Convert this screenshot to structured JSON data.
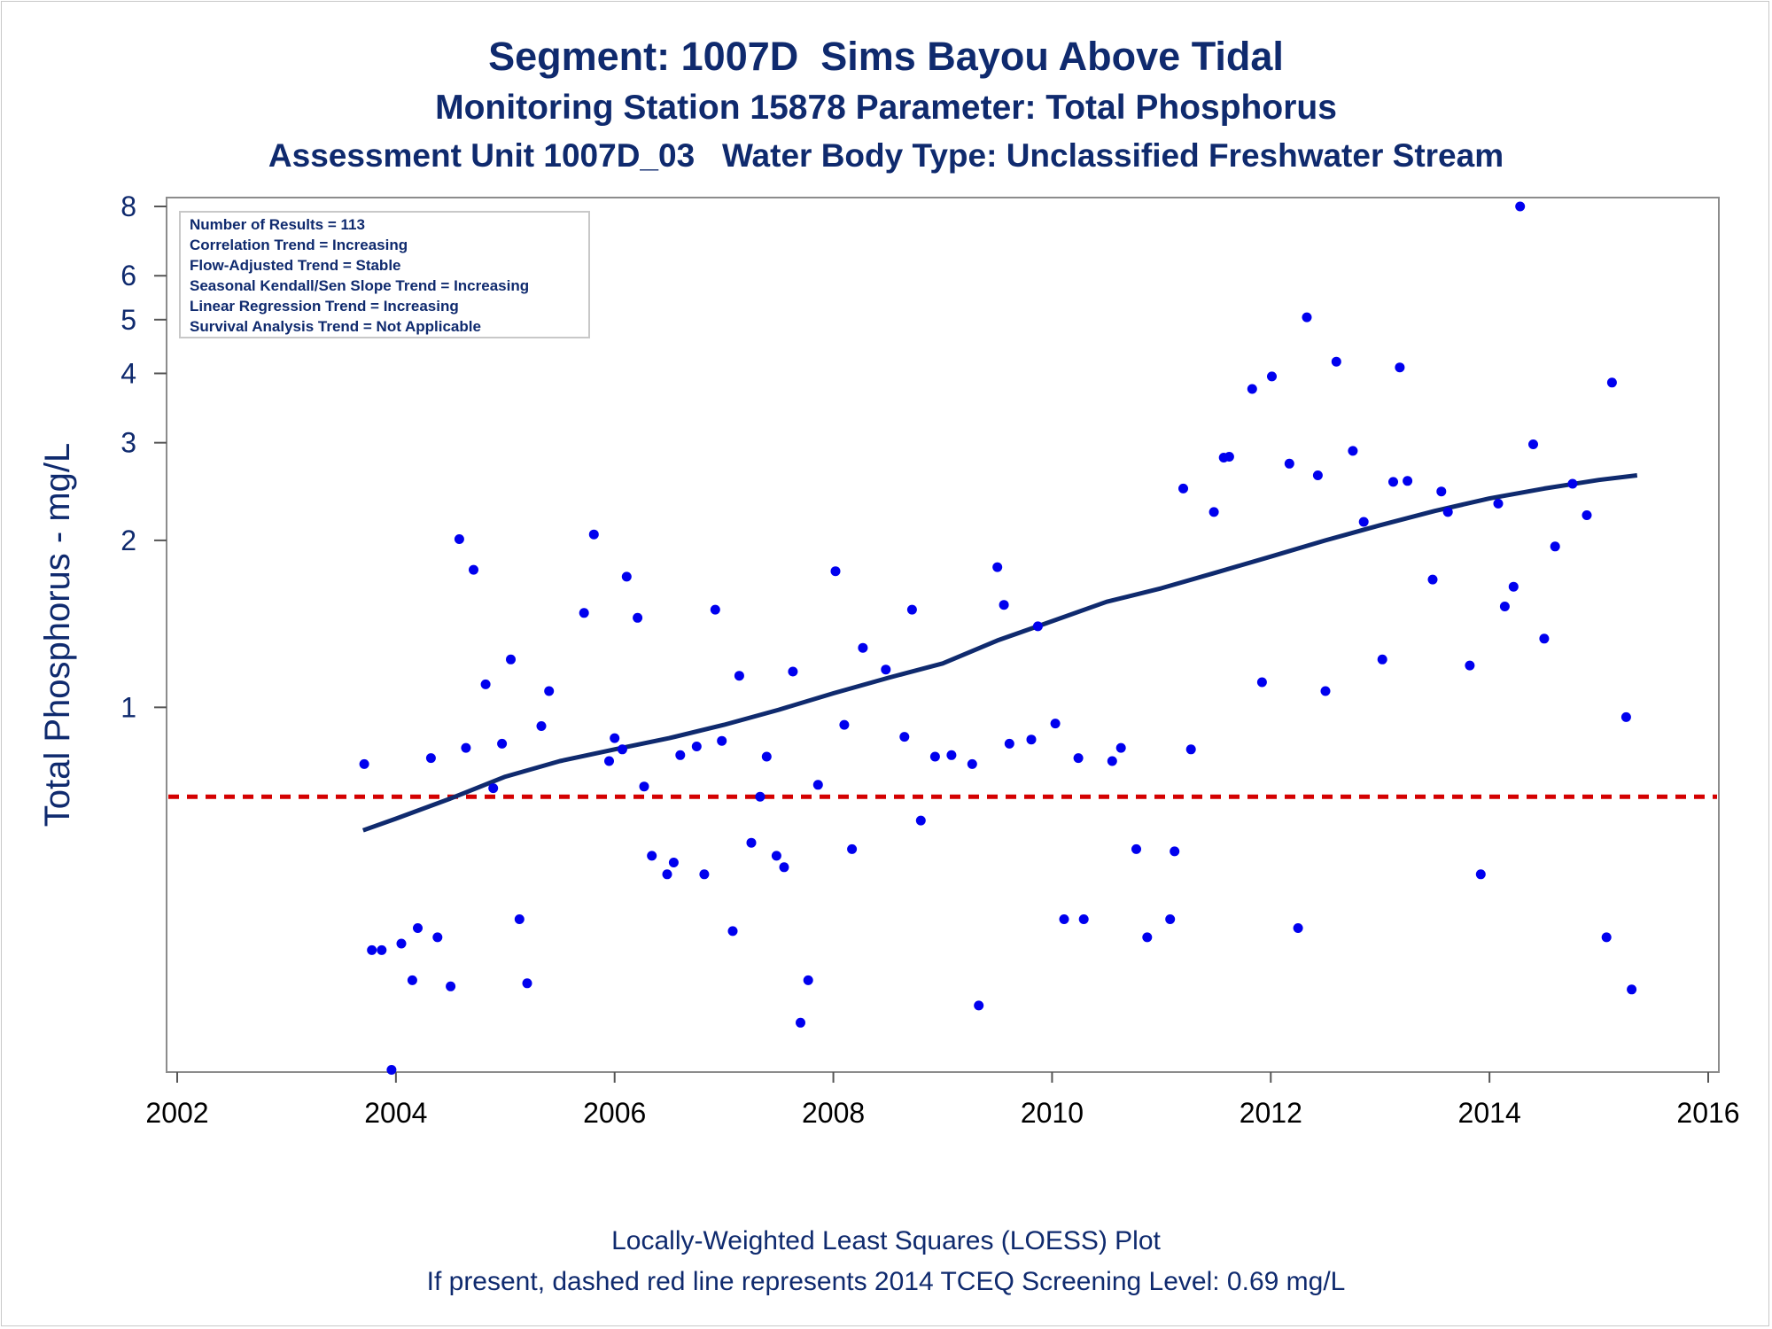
{
  "titles": {
    "line1": "Segment: 1007D  Sims Bayou Above Tidal",
    "line2": "Monitoring Station 15878 Parameter: Total Phosphorus",
    "line3": "Assessment Unit 1007D_03   Water Body Type: Unclassified Freshwater Stream"
  },
  "footnotes": {
    "line1": "Locally-Weighted Least Squares (LOESS) Plot",
    "line2": "If present, dashed red line represents 2014 TCEQ Screening Level: 0.69 mg/L"
  },
  "stats_box": [
    "Number of Results = 113",
    "Correlation Trend = Increasing",
    "Flow-Adjusted Trend = Stable",
    "Seasonal Kendall/Sen Slope Trend = Increasing",
    "Linear Regression Trend = Increasing",
    "Survival Analysis Trend = Not Applicable"
  ],
  "colors": {
    "title": "#0f2a6e",
    "points": "#0000ee",
    "loess": "#0f2a6e",
    "screening": "#d40000",
    "frame": "#8c8c8c"
  },
  "chart_data": {
    "type": "scatter",
    "title": "Segment: 1007D  Sims Bayou Above Tidal",
    "xlabel": "",
    "ylabel": "Total Phosphorus - mg/L",
    "y_scale": "log",
    "xlim": [
      2002,
      2016
    ],
    "ylim": [
      0.22,
      8.3
    ],
    "x_ticks": [
      2002,
      2004,
      2006,
      2008,
      2010,
      2012,
      2014,
      2016
    ],
    "y_ticks": [
      1,
      2,
      3,
      4,
      5,
      6,
      8
    ],
    "grid": false,
    "legend": "top-left stats box",
    "screening_level": 0.69,
    "points": [
      [
        2003.71,
        0.79
      ],
      [
        2003.78,
        0.365
      ],
      [
        2003.87,
        0.365
      ],
      [
        2003.96,
        0.222
      ],
      [
        2004.05,
        0.375
      ],
      [
        2004.15,
        0.322
      ],
      [
        2004.2,
        0.4
      ],
      [
        2004.32,
        0.81
      ],
      [
        2004.38,
        0.385
      ],
      [
        2004.5,
        0.314
      ],
      [
        2004.58,
        2.01
      ],
      [
        2004.64,
        0.845
      ],
      [
        2004.71,
        1.77
      ],
      [
        2004.82,
        1.1
      ],
      [
        2004.89,
        0.715
      ],
      [
        2004.97,
        0.86
      ],
      [
        2005.05,
        1.22
      ],
      [
        2005.13,
        0.415
      ],
      [
        2005.2,
        0.318
      ],
      [
        2005.33,
        0.925
      ],
      [
        2005.4,
        1.07
      ],
      [
        2005.72,
        1.48
      ],
      [
        2005.81,
        2.05
      ],
      [
        2005.95,
        0.8
      ],
      [
        2006.0,
        0.88
      ],
      [
        2006.07,
        0.84
      ],
      [
        2006.11,
        1.72
      ],
      [
        2006.21,
        1.45
      ],
      [
        2006.27,
        0.72
      ],
      [
        2006.34,
        0.54
      ],
      [
        2006.48,
        0.5
      ],
      [
        2006.54,
        0.525
      ],
      [
        2006.6,
        0.82
      ],
      [
        2006.75,
        0.85
      ],
      [
        2006.82,
        0.5
      ],
      [
        2006.92,
        1.5
      ],
      [
        2006.98,
        0.87
      ],
      [
        2007.08,
        0.395
      ],
      [
        2007.14,
        1.14
      ],
      [
        2007.25,
        0.57
      ],
      [
        2007.33,
        0.69
      ],
      [
        2007.39,
        0.815
      ],
      [
        2007.48,
        0.54
      ],
      [
        2007.55,
        0.515
      ],
      [
        2007.63,
        1.16
      ],
      [
        2007.7,
        0.27
      ],
      [
        2007.77,
        0.322
      ],
      [
        2007.86,
        0.725
      ],
      [
        2008.02,
        1.76
      ],
      [
        2008.1,
        0.93
      ],
      [
        2008.17,
        0.555
      ],
      [
        2008.27,
        1.28
      ],
      [
        2008.48,
        1.17
      ],
      [
        2008.65,
        0.885
      ],
      [
        2008.72,
        1.5
      ],
      [
        2008.8,
        0.625
      ],
      [
        2008.93,
        0.815
      ],
      [
        2009.08,
        0.82
      ],
      [
        2009.27,
        0.79
      ],
      [
        2009.33,
        0.29
      ],
      [
        2009.5,
        1.79
      ],
      [
        2009.56,
        1.53
      ],
      [
        2009.61,
        0.86
      ],
      [
        2009.81,
        0.875
      ],
      [
        2009.87,
        1.4
      ],
      [
        2010.03,
        0.935
      ],
      [
        2010.11,
        0.415
      ],
      [
        2010.24,
        0.81
      ],
      [
        2010.29,
        0.415
      ],
      [
        2010.55,
        0.8
      ],
      [
        2010.63,
        0.845
      ],
      [
        2010.77,
        0.555
      ],
      [
        2010.87,
        0.385
      ],
      [
        2011.08,
        0.415
      ],
      [
        2011.12,
        0.55
      ],
      [
        2011.2,
        2.48
      ],
      [
        2011.27,
        0.84
      ],
      [
        2011.48,
        2.25
      ],
      [
        2011.57,
        2.82
      ],
      [
        2011.62,
        2.83
      ],
      [
        2011.83,
        3.75
      ],
      [
        2011.92,
        1.11
      ],
      [
        2012.01,
        3.95
      ],
      [
        2012.17,
        2.75
      ],
      [
        2012.25,
        0.4
      ],
      [
        2012.33,
        5.05
      ],
      [
        2012.43,
        2.62
      ],
      [
        2012.5,
        1.07
      ],
      [
        2012.6,
        4.2
      ],
      [
        2012.75,
        2.9
      ],
      [
        2012.85,
        2.16
      ],
      [
        2013.02,
        1.22
      ],
      [
        2013.12,
        2.55
      ],
      [
        2013.18,
        4.1
      ],
      [
        2013.25,
        2.56
      ],
      [
        2013.48,
        1.7
      ],
      [
        2013.56,
        2.45
      ],
      [
        2013.62,
        2.25
      ],
      [
        2013.82,
        1.19
      ],
      [
        2013.92,
        0.5
      ],
      [
        2014.08,
        2.33
      ],
      [
        2014.14,
        1.52
      ],
      [
        2014.22,
        1.65
      ],
      [
        2014.28,
        8.0
      ],
      [
        2014.4,
        2.98
      ],
      [
        2014.5,
        1.33
      ],
      [
        2014.6,
        1.95
      ],
      [
        2014.76,
        2.53
      ],
      [
        2014.89,
        2.22
      ],
      [
        2015.07,
        0.385
      ],
      [
        2015.12,
        3.85
      ],
      [
        2015.25,
        0.96
      ],
      [
        2015.3,
        0.31
      ]
    ],
    "loess": [
      [
        2003.7,
        0.6
      ],
      [
        2004.0,
        0.63
      ],
      [
        2004.5,
        0.685
      ],
      [
        2005.0,
        0.75
      ],
      [
        2005.5,
        0.8
      ],
      [
        2006.0,
        0.84
      ],
      [
        2006.5,
        0.88
      ],
      [
        2007.0,
        0.93
      ],
      [
        2007.5,
        0.99
      ],
      [
        2008.0,
        1.06
      ],
      [
        2008.5,
        1.13
      ],
      [
        2009.0,
        1.2
      ],
      [
        2009.5,
        1.32
      ],
      [
        2010.0,
        1.43
      ],
      [
        2010.5,
        1.55
      ],
      [
        2011.0,
        1.64
      ],
      [
        2011.5,
        1.75
      ],
      [
        2012.0,
        1.87
      ],
      [
        2012.5,
        2.0
      ],
      [
        2013.0,
        2.13
      ],
      [
        2013.5,
        2.26
      ],
      [
        2014.0,
        2.38
      ],
      [
        2014.5,
        2.48
      ],
      [
        2015.0,
        2.57
      ],
      [
        2015.35,
        2.62
      ]
    ]
  }
}
